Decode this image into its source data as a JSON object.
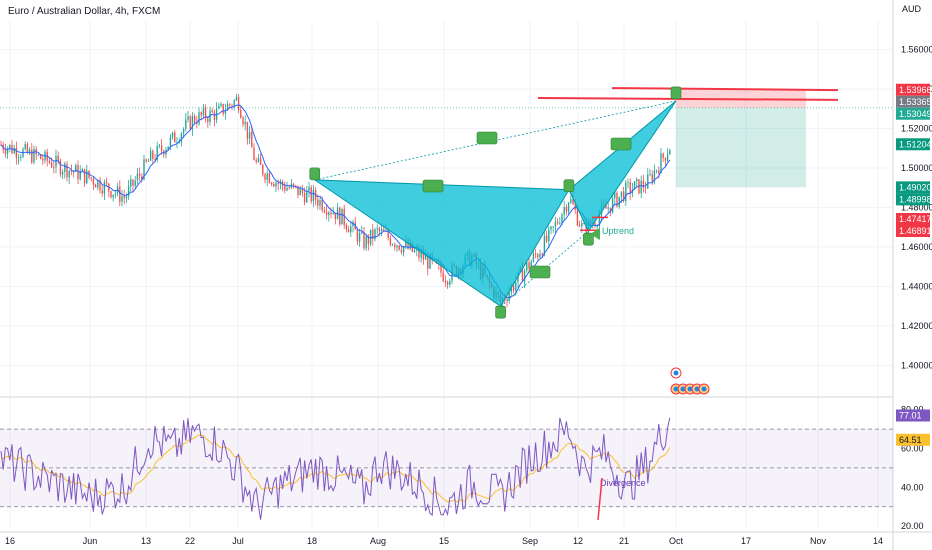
{
  "header": {
    "title": "Euro / Australian Dollar, 4h, FXCM",
    "currency": "AUD"
  },
  "chart_data": {
    "type": "line",
    "symbol": "EURAUD",
    "timeframe": "4h",
    "price_axis": {
      "range": [
        1.385,
        1.575
      ],
      "ticks": [
        "1.56000",
        "1.54000",
        "1.52000",
        "1.50000",
        "1.48000",
        "1.46000",
        "1.44000",
        "1.42000",
        "1.40000"
      ]
    },
    "time_axis": {
      "ticks": [
        "16",
        "Jun",
        "13",
        "22",
        "Jul",
        "18",
        "Aug",
        "15",
        "Sep",
        "12",
        "21",
        "Oct",
        "17",
        "Nov",
        "14"
      ]
    },
    "price_series": {
      "name": "",
      "x": [
        "May-10",
        "May-20",
        "Jun-01",
        "Jun-08",
        "Jun-13",
        "Jun-18",
        "Jun-22",
        "Jun-27",
        "Jul-01",
        "Jul-05",
        "Jul-10",
        "Jul-18",
        "Jul-24",
        "Jul-29",
        "Aug-01",
        "Aug-05",
        "Aug-10",
        "Aug-15",
        "Aug-20",
        "Aug-26",
        "Sep-01",
        "Sep-05",
        "Sep-09",
        "Sep-12",
        "Sep-16",
        "Sep-21",
        "Sep-25",
        "Sep-30"
      ],
      "values": [
        1.512,
        1.505,
        1.495,
        1.485,
        1.504,
        1.515,
        1.525,
        1.528,
        1.535,
        1.502,
        1.492,
        1.485,
        1.475,
        1.462,
        1.468,
        1.462,
        1.455,
        1.445,
        1.455,
        1.432,
        1.452,
        1.465,
        1.485,
        1.468,
        1.478,
        1.489,
        1.492,
        1.512
      ]
    },
    "current_price": 1.51204,
    "price_labels": [
      {
        "value": "1.53966",
        "color": "#f23645"
      },
      {
        "value": "1.53365",
        "color": "#787b86"
      },
      {
        "value": "1.53049",
        "color": "#22ab94"
      },
      {
        "value": "1.51204",
        "color": "#089981"
      },
      {
        "value": "1.49020",
        "color": "#089981"
      },
      {
        "value": "1.48998",
        "color": "#089981"
      },
      {
        "value": "1.47417",
        "color": "#f23645"
      },
      {
        "value": "1.46891",
        "color": "#f23645"
      }
    ],
    "harmonic_pattern": {
      "points": [
        {
          "date": "Jul-18",
          "price": 1.494
        },
        {
          "date": "Aug-26",
          "price": 1.43
        },
        {
          "date": "Sep-09",
          "price": 1.489
        },
        {
          "date": "Oct-01",
          "price": 1.534
        }
      ],
      "colors": {
        "fill": "#00bcd4",
        "stroke": "#0097a7"
      }
    },
    "trade_box": {
      "entry": 1.53049,
      "stop": 1.53966,
      "target": 1.4902
    },
    "annotations": [
      {
        "text": "Uptrend",
        "color": "#22ab94"
      },
      {
        "text": "Divergence",
        "color": "#673ab7"
      }
    ],
    "rsi": {
      "ticks": [
        "80.00",
        "60.00",
        "40.00",
        "20.00"
      ],
      "range": [
        18,
        85
      ],
      "upper_band": 70,
      "mid_band": 50,
      "lower_band": 30,
      "value_label": "77.01",
      "signal_label": "64.51",
      "line_color": "#7e57c2",
      "signal_color": "#fbc02d",
      "x": [
        "May-10",
        "May-20",
        "Jun-01",
        "Jun-08",
        "Jun-13",
        "Jun-18",
        "Jun-22",
        "Jun-27",
        "Jul-01",
        "Jul-05",
        "Jul-10",
        "Jul-18",
        "Jul-24",
        "Jul-29",
        "Aug-01",
        "Aug-05",
        "Aug-10",
        "Aug-15",
        "Aug-20",
        "Aug-26",
        "Sep-01",
        "Sep-05",
        "Sep-09",
        "Sep-12",
        "Sep-16",
        "Sep-21",
        "Sep-25",
        "Sep-30"
      ],
      "values": [
        55,
        45,
        35,
        40,
        65,
        60,
        68,
        62,
        48,
        30,
        40,
        50,
        45,
        38,
        52,
        48,
        40,
        30,
        42,
        35,
        55,
        62,
        70,
        50,
        58,
        40,
        52,
        77
      ]
    },
    "colors": {
      "up": "#26a69a",
      "down": "#ef5350",
      "ma": "#2962ff",
      "grid": "#f0f3fa",
      "band_fill": "#7e57c2",
      "tag_green": "#4caf50"
    }
  }
}
